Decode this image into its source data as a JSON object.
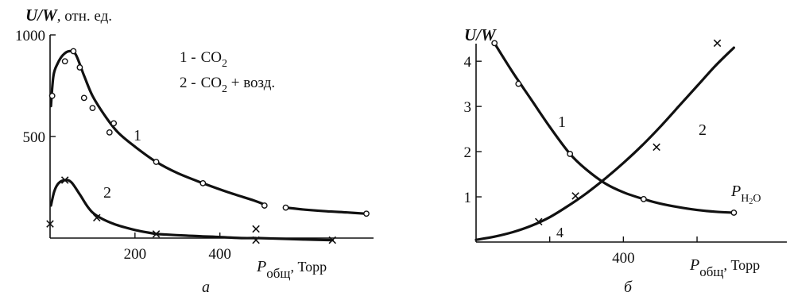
{
  "chart_data": [
    {
      "type": "line",
      "title": "",
      "panel_label": "а",
      "ylabel_main": "U/W",
      "ylabel_unit": ", отн. ед.",
      "xlabel_main": "P",
      "xlabel_sub": "общ",
      "xlabel_unit": ", Торр",
      "xlim": [
        0,
        760
      ],
      "ylim": [
        0,
        1000
      ],
      "xticks": [
        200,
        400
      ],
      "xtick_labels": [
        "200",
        "400"
      ],
      "yticks": [
        500,
        1000
      ],
      "ytick_labels": [
        "500",
        "1000"
      ],
      "legend": {
        "placement": "top-center",
        "entries": [
          {
            "num": "1 -",
            "formula": "CO",
            "sub": "2",
            "rest": ""
          },
          {
            "num": "2 -",
            "formula": "CO",
            "sub": "2",
            "rest": " + возд."
          }
        ]
      },
      "series": [
        {
          "label": "1",
          "marker": "o",
          "x": [
            5,
            35,
            55,
            70,
            80,
            100,
            140,
            150,
            250,
            360,
            505,
            555,
            745
          ],
          "y": [
            700,
            870,
            920,
            840,
            690,
            640,
            520,
            565,
            375,
            270,
            160,
            150,
            120
          ],
          "curve_x": [
            2,
            8,
            18,
            30,
            45,
            60,
            80,
            100,
            130,
            160,
            200,
            250,
            300,
            360,
            420,
            480,
            505
          ],
          "curve_y": [
            650,
            800,
            860,
            900,
            920,
            905,
            800,
            700,
            600,
            520,
            450,
            375,
            320,
            270,
            225,
            185,
            165
          ],
          "curve2_x": [
            555,
            600,
            650,
            700,
            745
          ],
          "curve2_y": [
            150,
            140,
            132,
            126,
            120
          ]
        },
        {
          "label": "2",
          "marker": "x",
          "x": [
            0,
            35,
            110,
            250,
            485,
            485,
            665
          ],
          "y": [
            70,
            285,
            100,
            20,
            45,
            -10,
            -10
          ],
          "curve_x": [
            2,
            10,
            20,
            35,
            50,
            70,
            90,
            110,
            150,
            200,
            250
          ],
          "curve_y": [
            160,
            230,
            270,
            285,
            275,
            215,
            150,
            110,
            70,
            40,
            20
          ],
          "curve2_x": [
            250,
            320,
            400,
            450,
            485
          ],
          "curve2_y": [
            20,
            12,
            5,
            0,
            0
          ],
          "curve3_x": [
            490,
            540,
            600,
            665
          ],
          "curve3_y": [
            0,
            -3,
            -7,
            -10
          ]
        }
      ]
    },
    {
      "type": "line",
      "title": "",
      "panel_label": "б",
      "ylabel_main": "U/W",
      "ylabel_unit": "",
      "xlabel_main": "P",
      "xlabel_sub": "общ",
      "xlabel_unit": ",  Торр",
      "xlim": [
        0,
        820
      ],
      "ylim": [
        0,
        4.6
      ],
      "xticks": [
        200,
        400,
        600
      ],
      "xtick_labels": [
        "",
        "400",
        ""
      ],
      "yticks": [
        1,
        2,
        3,
        4
      ],
      "ytick_labels": [
        "1",
        "2",
        "3",
        "4"
      ],
      "annotations": [
        {
          "text": "P",
          "sub": "H",
          "sub2": "2",
          "sub3": "O"
        },
        {
          "text": "4"
        }
      ],
      "series": [
        {
          "label": "1",
          "marker": "o",
          "x": [
            50,
            115,
            255,
            455,
            700
          ],
          "y": [
            4.4,
            3.5,
            1.95,
            0.95,
            0.65
          ],
          "curve_x": [
            50,
            100,
            150,
            200,
            255,
            300,
            350,
            400,
            455,
            500,
            550,
            600,
            650,
            700
          ],
          "curve_y": [
            4.4,
            3.75,
            3.15,
            2.55,
            1.95,
            1.6,
            1.3,
            1.1,
            0.95,
            0.85,
            0.77,
            0.71,
            0.67,
            0.65
          ]
        },
        {
          "label": "2",
          "marker": "x",
          "x": [
            170,
            270,
            490,
            655
          ],
          "y": [
            0.45,
            1.02,
            2.1,
            4.4
          ],
          "curve_x": [
            0,
            50,
            100,
            150,
            200,
            250,
            300,
            350,
            400,
            450,
            500,
            550,
            600,
            650,
            700
          ],
          "curve_y": [
            0.05,
            0.12,
            0.22,
            0.36,
            0.55,
            0.8,
            1.08,
            1.4,
            1.75,
            2.13,
            2.55,
            3.0,
            3.45,
            3.9,
            4.3
          ]
        }
      ]
    }
  ]
}
